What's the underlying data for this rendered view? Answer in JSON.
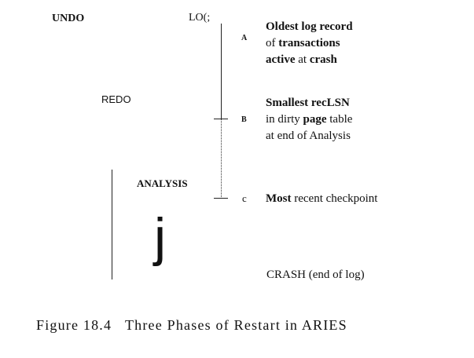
{
  "phases": {
    "undo": "UNDO",
    "redo": "REDO",
    "analysis": "ANALYSIS"
  },
  "log_label": "LO(;",
  "glyph_j": "j",
  "points": {
    "a": {
      "letter": "A",
      "line1_bold": "Oldest log record",
      "line2_plain": "of ",
      "line2_bold": "transactions",
      "line3_bold1": "active",
      "line3_plain": " at ",
      "line3_bold2": "crash"
    },
    "b": {
      "letter": "B",
      "line1_bold": "Smallest recLSN",
      "line2_plain1": "in dirty ",
      "line2_bold": "page",
      "line2_plain2": " table",
      "line3_plain": "at end of Analysis"
    },
    "c": {
      "letter": "c",
      "line1_bold": "Most",
      "line1_plain": " recent checkpoint"
    }
  },
  "crash_label": "CRASH (end of log)",
  "caption": "Figure 18.4   Three Phases of Restart in ARIES"
}
